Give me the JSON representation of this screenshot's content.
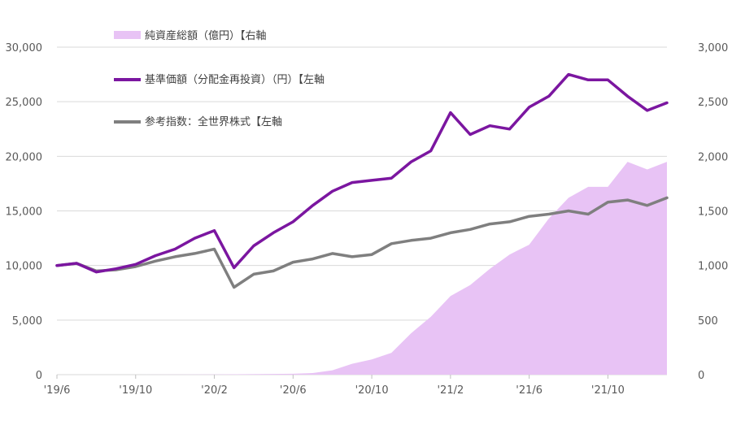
{
  "chart_data": {
    "type": "line",
    "legend": [
      {
        "key": "nav_total",
        "label": "純資産総額（億円）【右軸",
        "color": "#e8c3f5",
        "kind": "area"
      },
      {
        "key": "fund",
        "label": "基準価額（分配金再投資）（円）【左軸",
        "color": "#7b16a0",
        "kind": "line"
      },
      {
        "key": "index",
        "label": "参考指数：全世界株式【左軸",
        "color": "#7f7f7f",
        "kind": "line"
      }
    ],
    "legend_placement": "top-left",
    "grid": true,
    "left_axis": {
      "ticks": [
        "0",
        "5,000",
        "10,000",
        "15,000",
        "20,000",
        "25,000",
        "30,000"
      ],
      "ylim": [
        0,
        30000
      ]
    },
    "right_axis": {
      "ticks": [
        "0",
        "500",
        "1,000",
        "1,500",
        "2,000",
        "2,500",
        "3,000"
      ],
      "ylim": [
        0,
        3000
      ]
    },
    "x_ticks": [
      "'19/6",
      "'19/10",
      "'20/2",
      "'20/6",
      "'20/10",
      "'21/2",
      "'21/6",
      "'21/10"
    ],
    "x_months": [
      "2019-06",
      "2019-10",
      "2020-02",
      "2020-06",
      "2020-10",
      "2021-02",
      "2021-06",
      "2021-10"
    ],
    "x_range": [
      "2019-06",
      "2022-01"
    ],
    "series": [
      {
        "name": "基準価額（分配金再投資）（円）",
        "axis": "left",
        "x": [
          "2019-06",
          "2019-07",
          "2019-08",
          "2019-09",
          "2019-10",
          "2019-11",
          "2019-12",
          "2020-01",
          "2020-02",
          "2020-03",
          "2020-04",
          "2020-05",
          "2020-06",
          "2020-07",
          "2020-08",
          "2020-09",
          "2020-10",
          "2020-11",
          "2020-12",
          "2021-01",
          "2021-02",
          "2021-03",
          "2021-04",
          "2021-05",
          "2021-06",
          "2021-07",
          "2021-08",
          "2021-09",
          "2021-10",
          "2021-11",
          "2021-12",
          "2022-01"
        ],
        "values": [
          10000,
          10200,
          9400,
          9700,
          10100,
          10900,
          11500,
          12500,
          13200,
          9800,
          11800,
          13000,
          14000,
          15500,
          16800,
          17600,
          17800,
          18000,
          19500,
          20500,
          24000,
          22000,
          22800,
          22500,
          24500,
          25500,
          27500,
          27000,
          27000,
          25500,
          24200,
          24900
        ]
      },
      {
        "name": "参考指数：全世界株式",
        "axis": "left",
        "x": [
          "2019-06",
          "2019-07",
          "2019-08",
          "2019-09",
          "2019-10",
          "2019-11",
          "2019-12",
          "2020-01",
          "2020-02",
          "2020-03",
          "2020-04",
          "2020-05",
          "2020-06",
          "2020-07",
          "2020-08",
          "2020-09",
          "2020-10",
          "2020-11",
          "2020-12",
          "2021-01",
          "2021-02",
          "2021-03",
          "2021-04",
          "2021-05",
          "2021-06",
          "2021-07",
          "2021-08",
          "2021-09",
          "2021-10",
          "2021-11",
          "2021-12",
          "2022-01"
        ],
        "values": [
          10000,
          10200,
          9500,
          9600,
          9900,
          10400,
          10800,
          11100,
          11500,
          8000,
          9200,
          9500,
          10300,
          10600,
          11100,
          10800,
          11000,
          12000,
          12300,
          12500,
          13000,
          13300,
          13800,
          14000,
          14500,
          14700,
          15000,
          14700,
          15800,
          16000,
          15500,
          16200
        ]
      },
      {
        "name": "純資産総額（億円）",
        "axis": "right",
        "x": [
          "2019-06",
          "2019-10",
          "2020-02",
          "2020-06",
          "2020-07",
          "2020-08",
          "2020-09",
          "2020-10",
          "2020-11",
          "2020-12",
          "2021-01",
          "2021-02",
          "2021-03",
          "2021-04",
          "2021-05",
          "2021-06",
          "2021-07",
          "2021-08",
          "2021-09",
          "2021-10",
          "2021-11",
          "2021-12",
          "2022-01"
        ],
        "values": [
          0,
          0,
          2,
          8,
          15,
          40,
          100,
          140,
          200,
          380,
          530,
          720,
          820,
          970,
          1100,
          1190,
          1430,
          1620,
          1720,
          1720,
          1950,
          1880,
          1950
        ]
      }
    ]
  }
}
